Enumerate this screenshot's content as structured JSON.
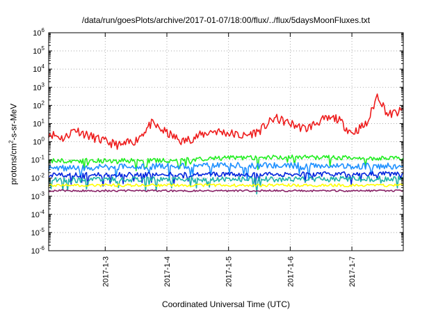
{
  "page": {
    "title": "/data/run/goesPlots/archive/2017-01-07/18:00/flux/../flux/5daysMoonFluxes.txt"
  },
  "chart_data": {
    "type": "line",
    "title": "/data/run/goesPlots/archive/2017-01-07/18:00/flux/../flux/5daysMoonFluxes.txt",
    "xlabel": "Coordinated Universal Time (UTC)",
    "ylabel": {
      "base": "protons/cm",
      "sup": "2",
      "rest": "-s-sr-MeV"
    },
    "y_scale": "log",
    "ylim": [
      1e-06,
      1000000.0
    ],
    "y_ticks": [
      {
        "base": "10",
        "exp": "-6"
      },
      {
        "base": "10",
        "exp": "-5"
      },
      {
        "base": "10",
        "exp": "-4"
      },
      {
        "base": "10",
        "exp": "-3"
      },
      {
        "base": "10",
        "exp": "-2"
      },
      {
        "base": "10",
        "exp": "-1"
      },
      {
        "base": "10",
        "exp": "0"
      },
      {
        "base": "10",
        "exp": "1"
      },
      {
        "base": "10",
        "exp": "2"
      },
      {
        "base": "10",
        "exp": "3"
      },
      {
        "base": "10",
        "exp": "4"
      },
      {
        "base": "10",
        "exp": "5"
      },
      {
        "base": "10",
        "exp": "6"
      }
    ],
    "xlim": [
      "2017-01-02T02:00",
      "2017-01-07T20:00"
    ],
    "x_ticks": [
      {
        "label": "2017-1-3",
        "t": "2017-01-03T00:00"
      },
      {
        "label": "2017-1-4",
        "t": "2017-01-04T00:00"
      },
      {
        "label": "2017-1-5",
        "t": "2017-01-05T00:00"
      },
      {
        "label": "2017-1-6",
        "t": "2017-01-06T00:00"
      },
      {
        "label": "2017-1-7",
        "t": "2017-01-07T00:00"
      }
    ],
    "grid": true,
    "legend": "none",
    "series": [
      {
        "color": "#ee1c1c",
        "base": 3,
        "noise": 0.5,
        "seed": 11,
        "points": [
          [
            "2017-01-02T02:00",
            3
          ],
          [
            "2017-01-02T08:00",
            1.5
          ],
          [
            "2017-01-02T12:00",
            5
          ],
          [
            "2017-01-02T18:00",
            2
          ],
          [
            "2017-01-03T00:00",
            1
          ],
          [
            "2017-01-03T06:00",
            0.6
          ],
          [
            "2017-01-03T12:00",
            1.2
          ],
          [
            "2017-01-03T18:00",
            10
          ],
          [
            "2017-01-04T00:00",
            3
          ],
          [
            "2017-01-04T06:00",
            1
          ],
          [
            "2017-01-04T12:00",
            2
          ],
          [
            "2017-01-04T18:00",
            4
          ],
          [
            "2017-01-05T00:00",
            3
          ],
          [
            "2017-01-05T06:00",
            2
          ],
          [
            "2017-01-05T12:00",
            4
          ],
          [
            "2017-01-05T18:00",
            20
          ],
          [
            "2017-01-06T00:00",
            10
          ],
          [
            "2017-01-06T06:00",
            5
          ],
          [
            "2017-01-06T12:00",
            15
          ],
          [
            "2017-01-06T18:00",
            20
          ],
          [
            "2017-01-07T00:00",
            3
          ],
          [
            "2017-01-07T06:00",
            10
          ],
          [
            "2017-01-07T10:00",
            400
          ],
          [
            "2017-01-07T14:00",
            30
          ],
          [
            "2017-01-07T20:00",
            50
          ]
        ]
      },
      {
        "color": "#22ee22",
        "base": 0.1,
        "noise": 0.25,
        "seed": 22,
        "points": [
          [
            "2017-01-02T02:00",
            0.09
          ],
          [
            "2017-01-04T00:00",
            0.09
          ],
          [
            "2017-01-05T00:00",
            0.13
          ],
          [
            "2017-01-06T00:00",
            0.14
          ],
          [
            "2017-01-07T20:00",
            0.12
          ]
        ]
      },
      {
        "color": "#1e90ff",
        "base": 0.04,
        "noise": 0.35,
        "seed": 33,
        "points": [
          [
            "2017-01-02T02:00",
            0.035
          ],
          [
            "2017-01-05T00:00",
            0.05
          ],
          [
            "2017-01-07T20:00",
            0.045
          ]
        ]
      },
      {
        "color": "#0022dd",
        "base": 0.015,
        "noise": 0.25,
        "seed": 44,
        "points": [
          [
            "2017-01-02T02:00",
            0.015
          ],
          [
            "2017-01-07T20:00",
            0.017
          ]
        ]
      },
      {
        "color": "#20b2aa",
        "base": 0.008,
        "noise": 0.3,
        "seed": 55,
        "points": [
          [
            "2017-01-02T02:00",
            0.008
          ],
          [
            "2017-01-07T20:00",
            0.009
          ]
        ]
      },
      {
        "color": "#ffff00",
        "base": 0.004,
        "noise": 0.15,
        "seed": 66,
        "points": [
          [
            "2017-01-02T02:00",
            0.004
          ],
          [
            "2017-01-07T20:00",
            0.004
          ]
        ]
      },
      {
        "color": "#882266",
        "base": 0.002,
        "noise": 0.1,
        "seed": 77,
        "points": [
          [
            "2017-01-02T02:00",
            0.002
          ],
          [
            "2017-01-07T20:00",
            0.002
          ]
        ]
      }
    ]
  }
}
